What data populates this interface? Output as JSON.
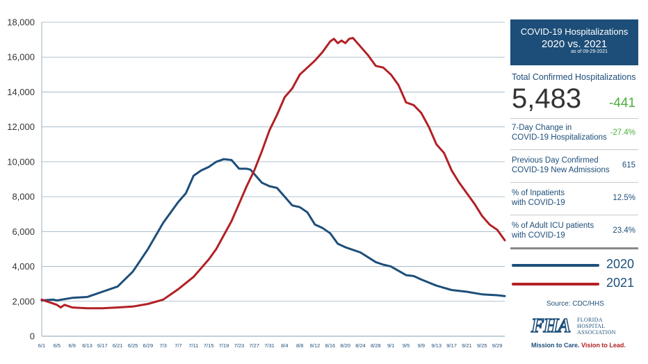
{
  "chart_data": {
    "type": "line",
    "ylim": [
      0,
      18000
    ],
    "yticks": [
      "0",
      "2,000",
      "4,000",
      "6,000",
      "8,000",
      "10,000",
      "12,000",
      "14,000",
      "16,000",
      "18,000"
    ],
    "xtick_labels": [
      "6/1",
      "6/5",
      "6/9",
      "6/13",
      "6/17",
      "6/21",
      "6/25",
      "6/29",
      "7/3",
      "7/7",
      "7/11",
      "7/15",
      "7/19",
      "7/23",
      "7/27",
      "7/31",
      "8/4",
      "8/8",
      "8/12",
      "8/16",
      "8/20",
      "8/24",
      "8/28",
      "9/1",
      "9/5",
      "9/9",
      "9/13",
      "9/17",
      "9/21",
      "9/25",
      "9/29"
    ],
    "x_days": [
      0,
      4,
      8,
      12,
      16,
      20,
      24,
      28,
      32,
      36,
      40,
      44,
      48,
      52,
      56,
      60,
      64,
      68,
      72,
      76,
      80,
      84,
      88,
      92,
      96,
      100,
      104,
      108,
      112,
      116,
      120
    ],
    "grid": true,
    "series": [
      {
        "name": "2020",
        "color": "#1d4e79",
        "x": [
          0,
          3,
          4,
          8,
          12,
          16,
          20,
          24,
          28,
          32,
          36,
          38,
          40,
          42,
          44,
          46,
          48,
          50,
          52,
          54,
          55,
          56,
          58,
          60,
          62,
          64,
          66,
          68,
          70,
          72,
          74,
          76,
          78,
          80,
          82,
          84,
          88,
          90,
          92,
          96,
          98,
          100,
          104,
          108,
          112,
          116,
          120,
          122
        ],
        "y": [
          2050,
          2100,
          2050,
          2200,
          2250,
          2550,
          2850,
          3700,
          5000,
          6500,
          7700,
          8200,
          9200,
          9500,
          9700,
          10000,
          10150,
          10100,
          9600,
          9600,
          9550,
          9300,
          8800,
          8600,
          8500,
          8000,
          7500,
          7400,
          7100,
          6400,
          6200,
          5900,
          5300,
          5100,
          4950,
          4800,
          4250,
          4100,
          4000,
          3500,
          3450,
          3250,
          2900,
          2650,
          2550,
          2400,
          2350,
          2300
        ]
      },
      {
        "name": "2021",
        "color": "#b22025",
        "x": [
          0,
          4,
          5,
          6,
          8,
          12,
          16,
          20,
          24,
          28,
          32,
          36,
          40,
          44,
          46,
          48,
          50,
          52,
          54,
          56,
          58,
          60,
          62,
          64,
          66,
          68,
          70,
          72,
          74,
          76,
          77,
          78,
          79,
          80,
          81,
          82,
          84,
          86,
          88,
          90,
          92,
          94,
          96,
          98,
          100,
          102,
          104,
          106,
          108,
          110,
          112,
          114,
          116,
          118,
          120,
          122
        ],
        "y": [
          2100,
          1800,
          1650,
          1800,
          1650,
          1600,
          1600,
          1650,
          1700,
          1850,
          2100,
          2700,
          3400,
          4400,
          5000,
          5800,
          6600,
          7600,
          8600,
          9500,
          10600,
          11800,
          12700,
          13700,
          14200,
          15000,
          15400,
          15800,
          16300,
          16900,
          17050,
          16800,
          16950,
          16800,
          17050,
          17100,
          16600,
          16100,
          15500,
          15400,
          15000,
          14400,
          13400,
          13250,
          12800,
          12000,
          11000,
          10500,
          9500,
          8800,
          8200,
          7600,
          6900,
          6400,
          6100,
          5500
        ]
      }
    ]
  },
  "panel": {
    "title_line1": "COVID-19 Hospitalizations",
    "title_line2": "2020 vs. 2021",
    "as_of": "as of 09-29-2021",
    "total_label": "Total Confirmed Hospitalizations",
    "total_value": "5,483",
    "total_change": "-441",
    "rows": [
      {
        "label_l1": "7-Day Change in",
        "label_l2": "COVID-19 Hospitalizations",
        "value": "-27.4%"
      },
      {
        "label_l1": "Previous Day Confirmed",
        "label_l2": "COVID-19 New Admissions",
        "value": "615"
      },
      {
        "label_l1": "% of Inpatients",
        "label_l2": "with COVID-19",
        "value": "12.5%"
      },
      {
        "label_l1": "% of Adult ICU patients",
        "label_l2": "with COVID-19",
        "value": "23.4%"
      }
    ],
    "legend_2020": "2020",
    "legend_2021": "2021",
    "source": "Source: CDC/HHS"
  },
  "logo": {
    "mark": "FHA",
    "name_l1": "FLORIDA",
    "name_l2": "HOSPITAL",
    "name_l3": "ASSOCIATION",
    "motto_a": "Mission to Care.",
    "motto_b": "Vision to Lead."
  },
  "colors": {
    "series_2020": "#1d4e79",
    "series_2021": "#b22025",
    "accent_green": "#4caf3b",
    "title_bg": "#1d4e79"
  }
}
